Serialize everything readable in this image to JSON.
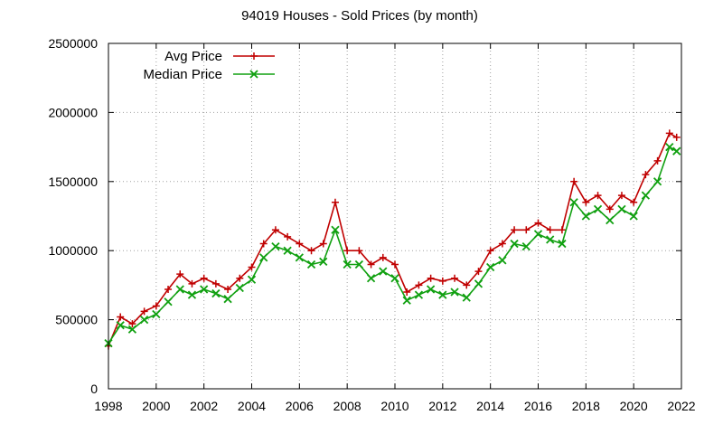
{
  "chart_data": {
    "type": "line",
    "title": "94019 Houses - Sold Prices (by month)",
    "xlabel": "",
    "ylabel": "",
    "xlim": [
      1998,
      2022
    ],
    "ylim": [
      0,
      2500000
    ],
    "x_ticks": [
      "1998",
      "2000",
      "2002",
      "2004",
      "2006",
      "2008",
      "2010",
      "2012",
      "2014",
      "2016",
      "2018",
      "2020",
      "2022"
    ],
    "y_ticks": [
      "0",
      "500000",
      "1000000",
      "1500000",
      "2000000",
      "2500000"
    ],
    "grid": true,
    "legend_position": "top-left",
    "x": [
      1998.0,
      1998.5,
      1999.0,
      1999.5,
      2000.0,
      2000.5,
      2001.0,
      2001.5,
      2002.0,
      2002.5,
      2003.0,
      2003.5,
      2004.0,
      2004.5,
      2005.0,
      2005.5,
      2006.0,
      2006.5,
      2007.0,
      2007.5,
      2008.0,
      2008.5,
      2009.0,
      2009.5,
      2010.0,
      2010.5,
      2011.0,
      2011.5,
      2012.0,
      2012.5,
      2013.0,
      2013.5,
      2014.0,
      2014.5,
      2015.0,
      2015.5,
      2016.0,
      2016.5,
      2017.0,
      2017.5,
      2018.0,
      2018.5,
      2019.0,
      2019.5,
      2020.0,
      2020.5,
      2021.0,
      2021.5,
      2021.8
    ],
    "series": [
      {
        "name": "Avg Price",
        "color": "#c00000",
        "marker": "plus",
        "values": [
          310000,
          520000,
          470000,
          560000,
          600000,
          720000,
          830000,
          760000,
          800000,
          760000,
          720000,
          800000,
          880000,
          1050000,
          1150000,
          1100000,
          1050000,
          1000000,
          1050000,
          1350000,
          1000000,
          1000000,
          900000,
          950000,
          900000,
          700000,
          750000,
          800000,
          780000,
          800000,
          750000,
          850000,
          1000000,
          1050000,
          1150000,
          1150000,
          1200000,
          1150000,
          1150000,
          1500000,
          1350000,
          1400000,
          1300000,
          1400000,
          1350000,
          1550000,
          1650000,
          1850000,
          1820000
        ]
      },
      {
        "name": "Median Price",
        "color": "#10a010",
        "marker": "cross",
        "values": [
          330000,
          460000,
          430000,
          500000,
          540000,
          630000,
          720000,
          680000,
          720000,
          690000,
          650000,
          730000,
          790000,
          950000,
          1030000,
          1000000,
          950000,
          900000,
          920000,
          1150000,
          900000,
          900000,
          800000,
          850000,
          800000,
          640000,
          680000,
          720000,
          680000,
          700000,
          660000,
          760000,
          880000,
          930000,
          1050000,
          1030000,
          1120000,
          1080000,
          1050000,
          1350000,
          1250000,
          1300000,
          1220000,
          1300000,
          1250000,
          1400000,
          1500000,
          1750000,
          1720000
        ]
      }
    ]
  }
}
